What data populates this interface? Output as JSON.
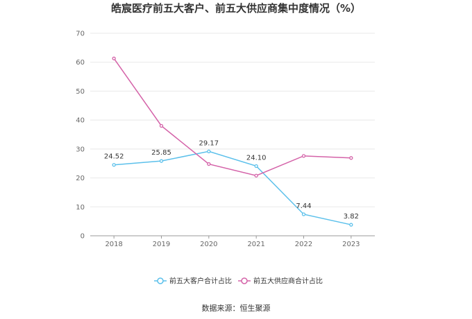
{
  "chart_data": {
    "type": "line",
    "title": "皓宸医疗前五大客户、前五大供应商集中度情况（%）",
    "categories": [
      "2018",
      "2019",
      "2020",
      "2021",
      "2022",
      "2023"
    ],
    "ylim": [
      0,
      70
    ],
    "yticks": [
      "0",
      "10",
      "20",
      "30",
      "40",
      "50",
      "60",
      "70"
    ],
    "series": [
      {
        "name": "前五大客户合计占比",
        "color": "#5bc0eb",
        "values": [
          24.52,
          25.85,
          29.17,
          24.1,
          7.44,
          3.82
        ],
        "labels": [
          "24.52",
          "25.85",
          "29.17",
          "24.10",
          "7.44",
          "3.82"
        ]
      },
      {
        "name": "前五大供应商合计占比",
        "color": "#d462a8",
        "values": [
          61.3,
          38.0,
          24.8,
          20.8,
          27.6,
          26.9
        ]
      }
    ],
    "grid": true,
    "legend": "bottom"
  },
  "source": "数据来源：恒生聚源"
}
